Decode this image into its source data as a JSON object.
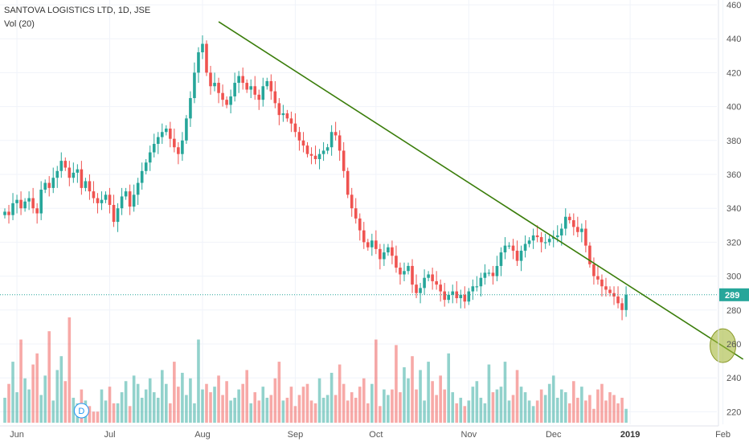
{
  "header": {
    "title": "SANTOVA LOGISTICS LTD, 1D, JSE",
    "volume_label": "Vol (20)"
  },
  "last_price_label": "289",
  "dividend_marker": "D",
  "chart_data": {
    "type": "candlestick",
    "title": "SANTOVA LOGISTICS LTD, 1D, JSE",
    "y_ticks": [
      220,
      240,
      260,
      280,
      300,
      320,
      340,
      360,
      380,
      400,
      420,
      440,
      460
    ],
    "ylim": [
      210,
      462
    ],
    "x_labels": [
      {
        "label": "Jun",
        "day": 3,
        "bold": false
      },
      {
        "label": "Jul",
        "day": 26,
        "bold": false
      },
      {
        "label": "Aug",
        "day": 49,
        "bold": false
      },
      {
        "label": "Sep",
        "day": 72,
        "bold": false
      },
      {
        "label": "Oct",
        "day": 92,
        "bold": false
      },
      {
        "label": "Nov",
        "day": 115,
        "bold": false
      },
      {
        "label": "Dec",
        "day": 136,
        "bold": false
      },
      {
        "label": "2019",
        "day": 155,
        "bold": true
      },
      {
        "label": "Feb",
        "day": 178,
        "bold": false
      }
    ],
    "last_price": 289,
    "up_color": "#26a69a",
    "down_color": "#ef5350",
    "trendline": {
      "start": {
        "day": 53,
        "price": 450
      },
      "end": {
        "day": 183,
        "price": 251
      },
      "color": "#3a7d0a"
    },
    "highlight": {
      "day": 178,
      "price": 259,
      "color": "#a5b83a"
    },
    "dividend_day": 19,
    "closes": [
      338,
      336,
      343,
      345,
      340,
      344,
      346,
      340,
      337,
      351,
      355,
      352,
      358,
      362,
      368,
      364,
      358,
      361,
      363,
      352,
      356,
      350,
      346,
      343,
      345,
      348,
      342,
      332,
      340,
      347,
      350,
      341,
      348,
      355,
      362,
      367,
      373,
      378,
      382,
      385,
      387,
      381,
      376,
      372,
      380,
      393,
      405,
      420,
      432,
      437,
      420,
      412,
      414,
      408,
      404,
      401,
      406,
      414,
      418,
      414,
      410,
      412,
      407,
      404,
      412,
      415,
      409,
      402,
      395,
      396,
      393,
      390,
      385,
      380,
      377,
      372,
      371,
      369,
      372,
      374,
      376,
      385,
      383,
      374,
      362,
      348,
      340,
      334,
      327,
      320,
      317,
      321,
      316,
      310,
      314,
      317,
      312,
      305,
      301,
      303,
      306,
      295,
      290,
      293,
      299,
      301,
      297,
      295,
      291,
      286,
      289,
      291,
      287,
      289,
      285,
      291,
      294,
      294,
      299,
      302,
      302,
      300,
      306,
      314,
      318,
      318,
      315,
      309,
      315,
      319,
      321,
      324,
      323,
      320,
      320,
      322,
      323,
      324,
      328,
      335,
      333,
      329,
      326,
      328,
      318,
      307,
      300,
      298,
      294,
      292,
      290,
      288,
      284,
      280,
      289
    ],
    "volumes": [
      9,
      14,
      22,
      11,
      30,
      16,
      12,
      21,
      25,
      10,
      17,
      33,
      8,
      19,
      24,
      15,
      38,
      9,
      7,
      12,
      8,
      6,
      4,
      4,
      12,
      8,
      13,
      7,
      7,
      11,
      15,
      6,
      17,
      14,
      9,
      12,
      16,
      11,
      9,
      19,
      14,
      7,
      22,
      13,
      18,
      10,
      16,
      7,
      30,
      12,
      14,
      11,
      13,
      17,
      10,
      15,
      8,
      9,
      12,
      14,
      19,
      7,
      11,
      8,
      13,
      9,
      10,
      16,
      22,
      8,
      9,
      13,
      6,
      10,
      13,
      14,
      8,
      7,
      16,
      9,
      10,
      18,
      10,
      21,
      14,
      8,
      11,
      9,
      13,
      16,
      7,
      14,
      30,
      6,
      12,
      10,
      12,
      28,
      11,
      20,
      16,
      24,
      12,
      19,
      8,
      22,
      15,
      10,
      17,
      12,
      25,
      11,
      7,
      9,
      6,
      8,
      13,
      15,
      9,
      7,
      21,
      11,
      12,
      13,
      22,
      8,
      10,
      19,
      13,
      11,
      8,
      6,
      8,
      12,
      10,
      14,
      17,
      9,
      12,
      11,
      7,
      15,
      9,
      13,
      8,
      10,
      5,
      12,
      14,
      8,
      11,
      10,
      7,
      9,
      5
    ]
  }
}
